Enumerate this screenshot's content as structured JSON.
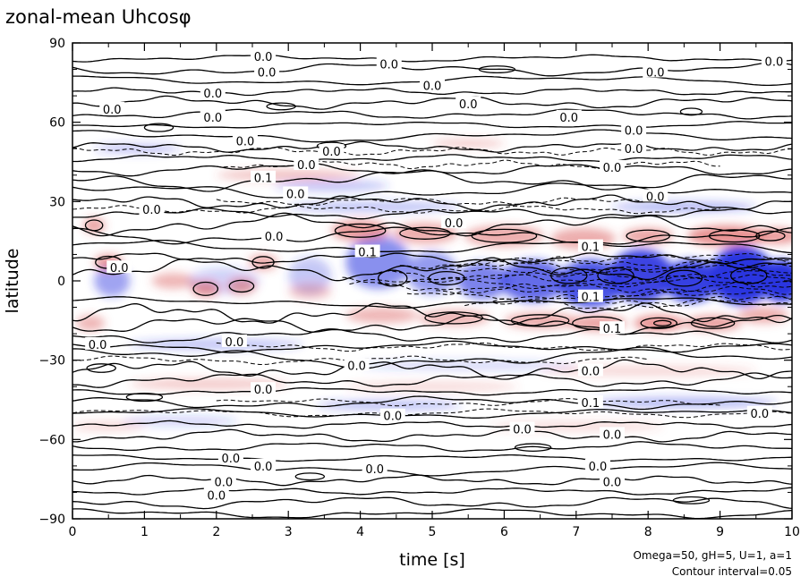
{
  "chart_data": {
    "type": "heatmap",
    "title": "zonal-mean Uhcosφ",
    "xlabel": "time [s]",
    "ylabel": "latitude",
    "xlim": [
      0,
      10
    ],
    "ylim": [
      -90,
      90
    ],
    "x_ticks": [
      "0",
      "1",
      "2",
      "3",
      "4",
      "5",
      "6",
      "7",
      "8",
      "9",
      "10"
    ],
    "y_ticks": [
      "90",
      "60",
      "30",
      "0",
      "−30",
      "−60",
      "−90"
    ],
    "grid": false,
    "contour_interval": 0.05,
    "colors": {
      "positive": "#d84a4a",
      "negative": "#2a35e0",
      "contour": "#000000"
    },
    "annotations": [
      "Omega=50, gH=5, U=1, a=1",
      "Contour interval=0.05"
    ],
    "contour_labels": [
      {
        "x": 2.65,
        "y": 85,
        "text": "0.0"
      },
      {
        "x": 2.7,
        "y": 79,
        "text": "0.0"
      },
      {
        "x": 4.4,
        "y": 82,
        "text": "0.0"
      },
      {
        "x": 5.0,
        "y": 74,
        "text": "0.0"
      },
      {
        "x": 8.1,
        "y": 79,
        "text": "0.0"
      },
      {
        "x": 9.75,
        "y": 83,
        "text": "0.0"
      },
      {
        "x": 1.95,
        "y": 71,
        "text": "0.0"
      },
      {
        "x": 0.55,
        "y": 65,
        "text": "0.0"
      },
      {
        "x": 1.95,
        "y": 62,
        "text": "0.0"
      },
      {
        "x": 5.5,
        "y": 67,
        "text": "0.0"
      },
      {
        "x": 6.9,
        "y": 62,
        "text": "0.0"
      },
      {
        "x": 7.8,
        "y": 57,
        "text": "0.0"
      },
      {
        "x": 7.8,
        "y": 50,
        "text": "0.0"
      },
      {
        "x": 2.4,
        "y": 53,
        "text": "0.0"
      },
      {
        "x": 3.6,
        "y": 49,
        "text": "0.0"
      },
      {
        "x": 3.25,
        "y": 44,
        "text": "0.0"
      },
      {
        "x": 7.5,
        "y": 43,
        "text": "0.0"
      },
      {
        "x": 8.1,
        "y": 32,
        "text": "0.0"
      },
      {
        "x": 2.65,
        "y": 39,
        "text": "0.1"
      },
      {
        "x": 3.1,
        "y": 33,
        "text": "0.0"
      },
      {
        "x": 1.1,
        "y": 27,
        "text": "0.0"
      },
      {
        "x": 5.3,
        "y": 22,
        "text": "0.0"
      },
      {
        "x": 2.8,
        "y": 17,
        "text": "0.0"
      },
      {
        "x": 4.1,
        "y": 11,
        "text": "0.1"
      },
      {
        "x": 7.2,
        "y": 13,
        "text": "0.1"
      },
      {
        "x": 0.65,
        "y": 5,
        "text": "0.0"
      },
      {
        "x": 7.2,
        "y": -6,
        "text": "0.1"
      },
      {
        "x": 7.5,
        "y": -18,
        "text": "0.1"
      },
      {
        "x": 0.35,
        "y": -24,
        "text": "0.0"
      },
      {
        "x": 2.25,
        "y": -23,
        "text": "0.0"
      },
      {
        "x": 3.95,
        "y": -32,
        "text": "0.0"
      },
      {
        "x": 7.2,
        "y": -34,
        "text": "0.0"
      },
      {
        "x": 2.65,
        "y": -41,
        "text": "0.0"
      },
      {
        "x": 7.2,
        "y": -46,
        "text": "0.1"
      },
      {
        "x": 4.45,
        "y": -51,
        "text": "0.0"
      },
      {
        "x": 9.55,
        "y": -50,
        "text": "0.0"
      },
      {
        "x": 6.25,
        "y": -56,
        "text": "0.0"
      },
      {
        "x": 7.5,
        "y": -58,
        "text": "0.0"
      },
      {
        "x": 2.2,
        "y": -67,
        "text": "0.0"
      },
      {
        "x": 2.65,
        "y": -70,
        "text": "0.0"
      },
      {
        "x": 4.2,
        "y": -71,
        "text": "0.0"
      },
      {
        "x": 7.3,
        "y": -70,
        "text": "0.0"
      },
      {
        "x": 2.1,
        "y": -76,
        "text": "0.0"
      },
      {
        "x": 7.5,
        "y": -76,
        "text": "0.0"
      },
      {
        "x": 2.0,
        "y": -81,
        "text": "0.0"
      }
    ]
  }
}
